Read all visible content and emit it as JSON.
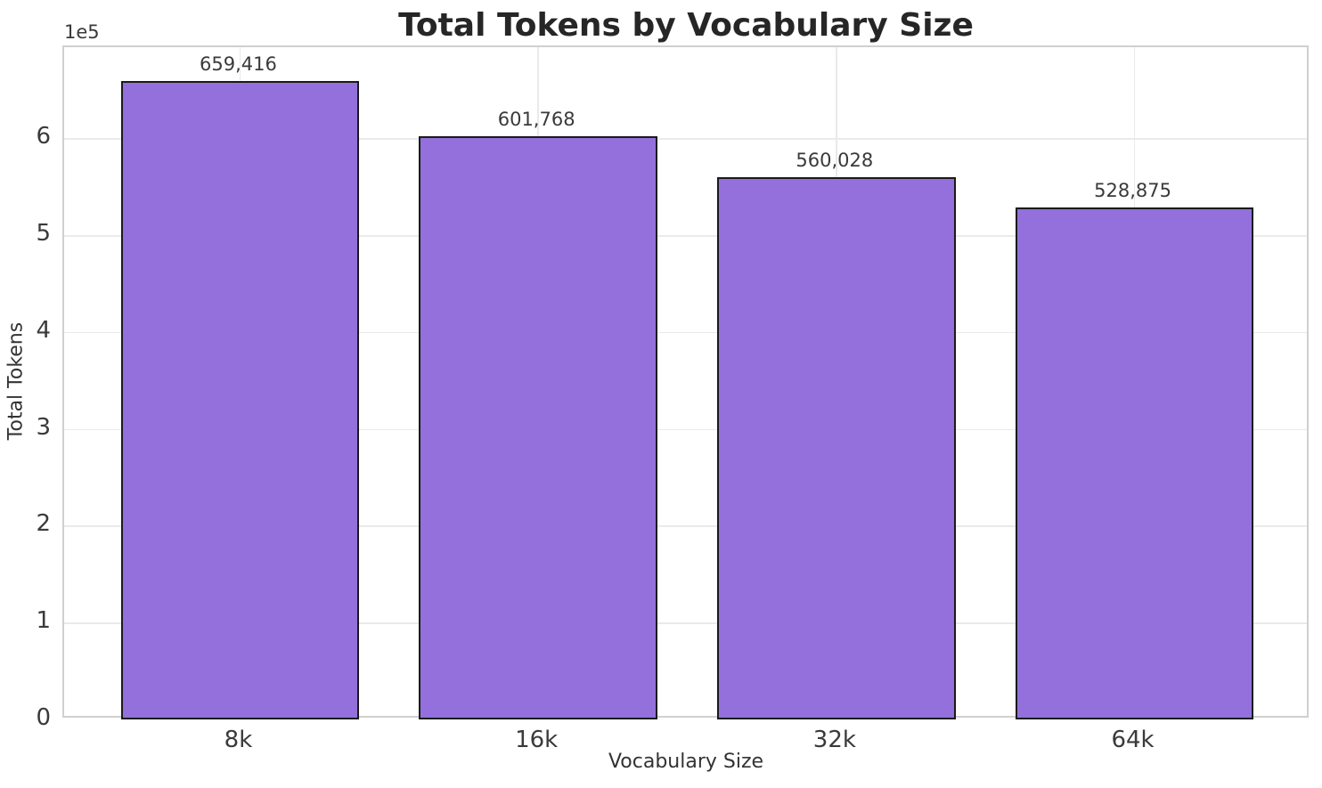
{
  "chart_data": {
    "type": "bar",
    "title": "Total Tokens by Vocabulary Size",
    "xlabel": "Vocabulary Size",
    "ylabel": "Total Tokens",
    "offset_text": "1e5",
    "categories": [
      "8k",
      "16k",
      "32k",
      "64k"
    ],
    "values": [
      659416,
      601768,
      560028,
      528875
    ],
    "bar_labels": [
      "659,416",
      "601,768",
      "560,028",
      "528,875"
    ],
    "y_ticks": [
      0,
      1,
      2,
      3,
      4,
      5,
      6
    ],
    "y_tick_scale": 100000,
    "ylim": [
      0,
      694000
    ],
    "xlim": [
      -0.59,
      3.59
    ],
    "bar_width": 0.8,
    "grid": true,
    "legend": "none",
    "colors": {
      "bar_fill": "#9370db",
      "bar_edge": "#1a1a1a",
      "grid_line": "#eaeaea",
      "spine": "#d0d0d0",
      "title_text": "#262626",
      "tick_text": "#3a3a3a",
      "label_text": "#333333"
    }
  }
}
